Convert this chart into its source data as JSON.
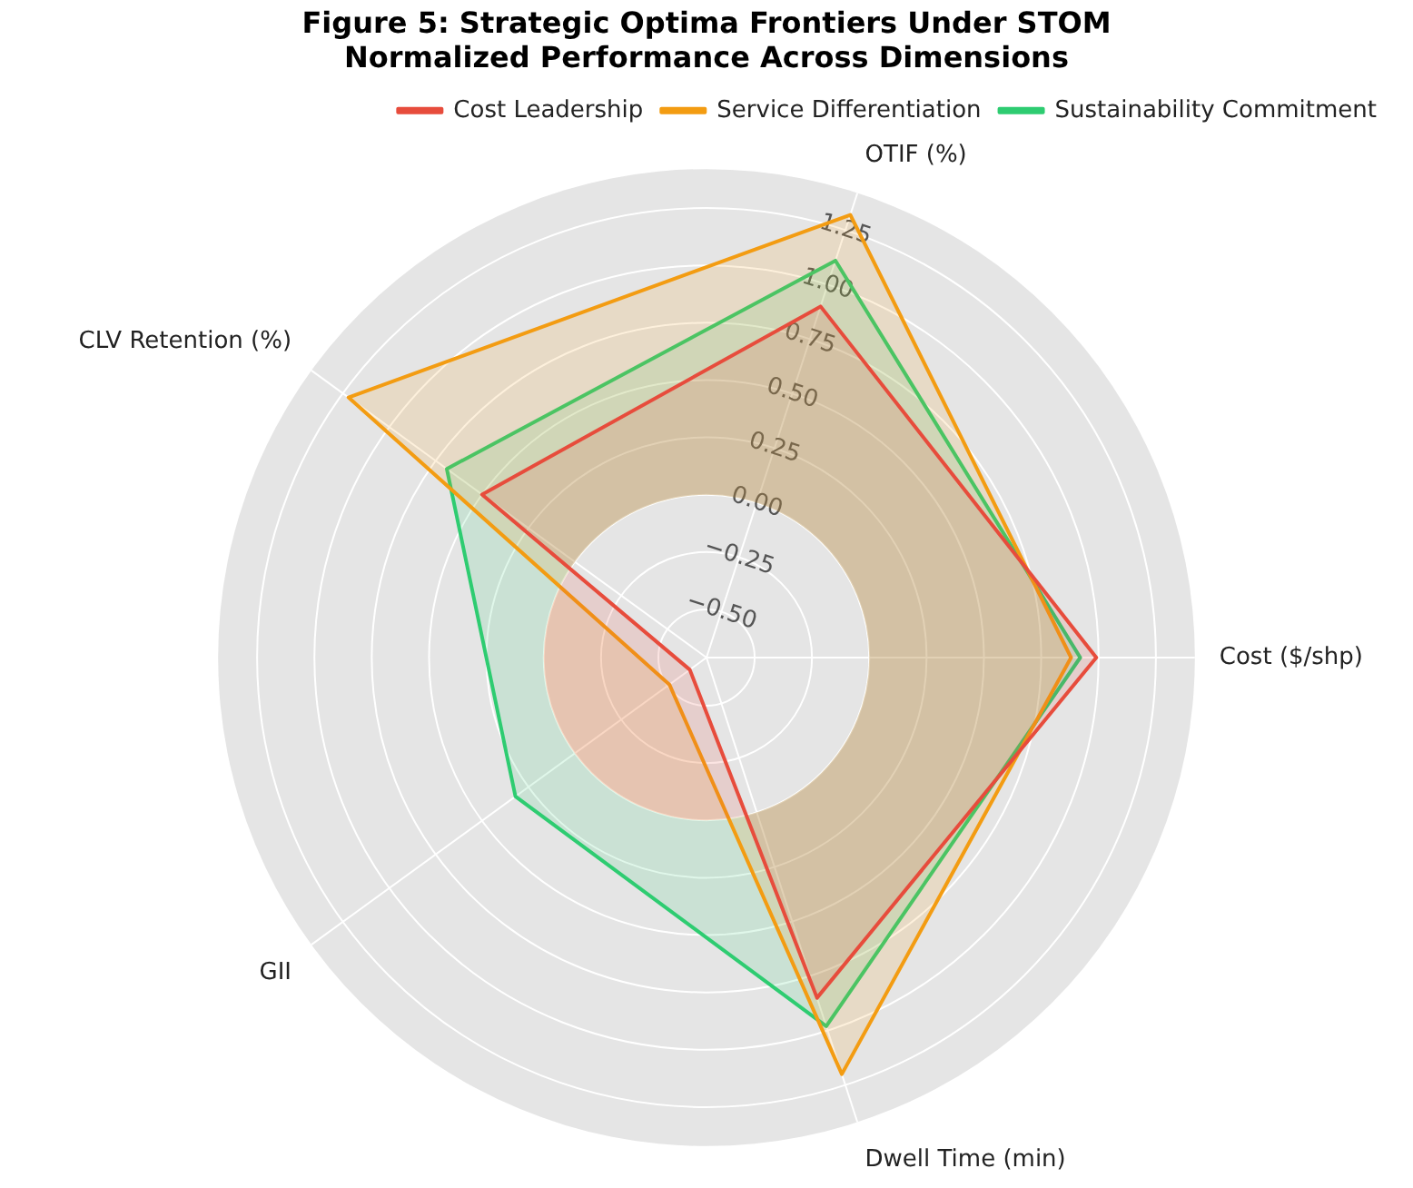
{
  "chart_data": {
    "type": "radar",
    "title": [
      "Figure 5: Strategic Optima Frontiers Under STOM",
      "Normalized Performance Across Dimensions"
    ],
    "categories": [
      "OTIF (%)",
      "Cost ($/shp)",
      "Dwell Time (min)",
      "GII",
      "CLV Retention (%)"
    ],
    "series": [
      {
        "name": "Cost Leadership",
        "color": "#e74c3c",
        "values": [
          0.9,
          0.99,
          0.85,
          -0.62,
          0.5
        ]
      },
      {
        "name": "Service Differentiation",
        "color": "#f39c12",
        "values": [
          1.32,
          0.88,
          1.2,
          -0.51,
          1.22
        ]
      },
      {
        "name": "Sustainability Commitment",
        "color": "#2ecc71",
        "values": [
          1.11,
          0.92,
          0.98,
          0.32,
          0.69
        ]
      }
    ],
    "ylim": [
      -0.71,
      1.42
    ],
    "yticks": [
      {
        "value": -0.5,
        "label": "−0.50"
      },
      {
        "value": -0.25,
        "label": "−0.25"
      },
      {
        "value": 0,
        "label": "0.00"
      },
      {
        "value": 0.25,
        "label": "0.25"
      },
      {
        "value": 0.5,
        "label": "0.50"
      },
      {
        "value": 0.75,
        "label": "0.75"
      },
      {
        "value": 1,
        "label": "1.00"
      },
      {
        "value": 1.25,
        "label": "1.25"
      }
    ],
    "grid": true,
    "legend": "top right",
    "marker": "none",
    "line_style": "solid"
  }
}
